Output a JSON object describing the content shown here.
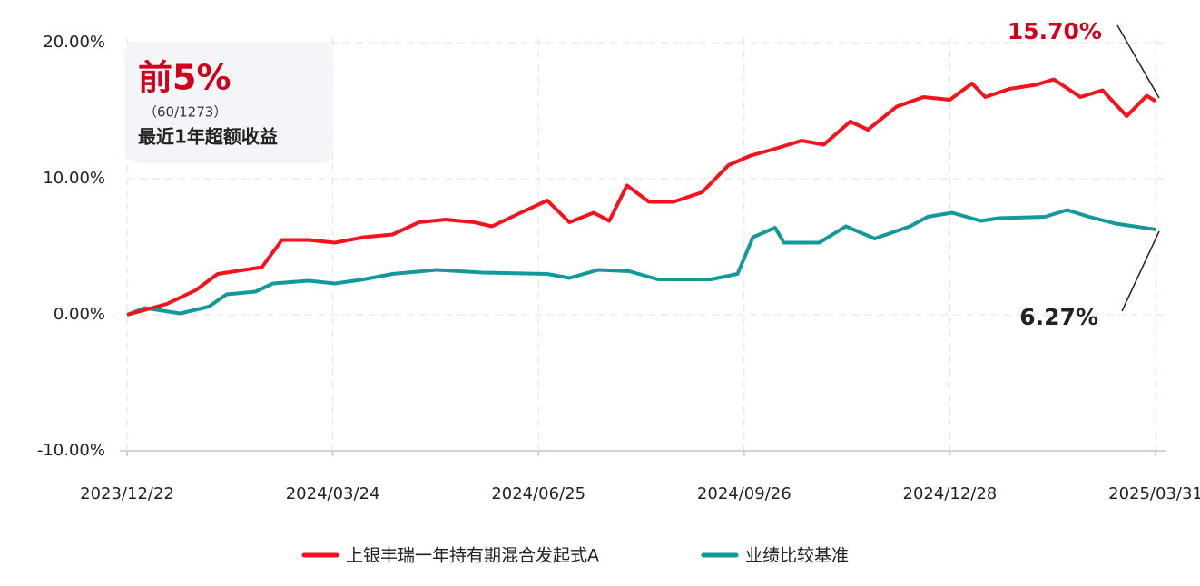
{
  "chart_data": {
    "type": "line",
    "xlim": [
      "2023/12/22",
      "2025/03/31"
    ],
    "xticks": [
      "2023/12/22",
      "2024/03/24",
      "2024/06/25",
      "2024/09/26",
      "2024/12/28",
      "2025/03/31"
    ],
    "ylim": [
      -10,
      20
    ],
    "yticks": [
      {
        "value": -10,
        "label": "-10.00%"
      },
      {
        "value": 0,
        "label": "0.00%"
      },
      {
        "value": 10,
        "label": "10.00%"
      },
      {
        "value": 20,
        "label": "20.00%"
      }
    ],
    "grid": true,
    "legend": "bottom",
    "annotations": [
      {
        "text": "前5%"
      },
      {
        "text": "（60/1273）"
      },
      {
        "text": "最近1年超额收益"
      },
      {
        "text": "15.70%"
      },
      {
        "text": "6.27%"
      }
    ],
    "series": [
      {
        "name": "上银丰瑞一年持有期混合发起式A",
        "color": "#f5121c",
        "x": [
          "2023/12/22",
          "2024/01/09",
          "2024/01/22",
          "2024/02/01",
          "2024/02/09",
          "2024/02/21",
          "2024/03/01",
          "2024/03/13",
          "2024/03/25",
          "2024/04/07",
          "2024/04/20",
          "2024/05/02",
          "2024/05/14",
          "2024/05/27",
          "2024/06/04",
          "2024/06/17",
          "2024/06/29",
          "2024/07/09",
          "2024/07/20",
          "2024/07/27",
          "2024/08/04",
          "2024/08/14",
          "2024/08/25",
          "2024/09/07",
          "2024/09/19",
          "2024/09/29",
          "2024/10/10",
          "2024/10/22",
          "2024/11/01",
          "2024/11/13",
          "2024/11/21",
          "2024/12/04",
          "2024/12/16",
          "2024/12/28",
          "2025/01/07",
          "2025/01/13",
          "2025/01/24",
          "2025/02/05",
          "2025/02/13",
          "2025/02/25",
          "2025/03/07",
          "2025/03/18",
          "2025/03/27",
          "2025/03/31"
        ],
        "values": [
          0,
          0.8,
          1.8,
          3.0,
          3.2,
          3.5,
          5.5,
          5.5,
          5.3,
          5.7,
          5.9,
          6.8,
          7.0,
          6.8,
          6.5,
          7.5,
          8.4,
          6.8,
          7.5,
          6.9,
          9.5,
          8.3,
          8.3,
          9.0,
          11.0,
          11.7,
          12.2,
          12.8,
          12.5,
          14.2,
          13.6,
          15.3,
          16.0,
          15.8,
          17.0,
          16.0,
          16.6,
          16.9,
          17.3,
          16.0,
          16.5,
          14.6,
          16.1,
          15.7
        ]
      },
      {
        "name": "业绩比较基准",
        "color": "#13999a",
        "x": [
          "2023/12/22",
          "2023/12/30",
          "2024/01/15",
          "2024/01/28",
          "2024/02/05",
          "2024/02/18",
          "2024/02/26",
          "2024/03/13",
          "2024/03/25",
          "2024/04/07",
          "2024/04/20",
          "2024/05/10",
          "2024/05/31",
          "2024/06/29",
          "2024/07/09",
          "2024/07/22",
          "2024/08/05",
          "2024/08/18",
          "2024/09/11",
          "2024/09/23",
          "2024/09/30",
          "2024/10/10",
          "2024/10/14",
          "2024/10/30",
          "2024/11/11",
          "2024/11/24",
          "2024/12/10",
          "2024/12/18",
          "2024/12/29",
          "2025/01/11",
          "2025/01/19",
          "2025/02/09",
          "2025/02/19",
          "2025/03/01",
          "2025/03/13",
          "2025/03/31"
        ],
        "values": [
          0,
          0.5,
          0.1,
          0.6,
          1.5,
          1.7,
          2.3,
          2.5,
          2.3,
          2.6,
          3.0,
          3.3,
          3.1,
          3.0,
          2.7,
          3.3,
          3.2,
          2.6,
          2.6,
          3.0,
          5.7,
          6.4,
          5.3,
          5.3,
          6.5,
          5.6,
          6.5,
          7.2,
          7.5,
          6.9,
          7.1,
          7.2,
          7.7,
          7.2,
          6.7,
          6.27
        ]
      }
    ]
  }
}
